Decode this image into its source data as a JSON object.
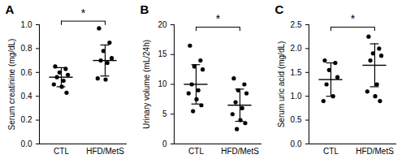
{
  "chart_data": [
    {
      "type": "scatter",
      "title": "A",
      "y_label": "Serum creatinine (mg/dL)",
      "categories": [
        "CTL",
        "HFD/MetS"
      ],
      "points": [
        [
          0.65,
          0.63,
          0.6,
          0.58,
          0.56,
          0.53,
          0.5,
          0.48,
          0.43
        ],
        [
          0.97,
          0.85,
          0.78,
          0.72,
          0.7,
          0.68,
          0.55,
          0.54
        ]
      ],
      "mean": [
        0.56,
        0.7
      ],
      "sd": [
        0.08,
        0.13
      ],
      "color": "#000000",
      "ylim": [
        0,
        1
      ],
      "yticks": [
        {
          "value": 0,
          "label": "0.0"
        },
        0.2,
        0.4,
        0.6,
        0.8,
        {
          "value": 1,
          "label": "1.0"
        }
      ],
      "annotations": [
        {
          "text": "*",
          "between": [
            "CTL",
            "HFD/MetS"
          ]
        }
      ]
    },
    {
      "type": "scatter",
      "title": "B",
      "y_label": "Urinary volume (mL/24h)",
      "categories": [
        "CTL",
        "HFD/MetS"
      ],
      "points": [
        [
          16.5,
          14,
          13,
          12.5,
          10,
          9,
          8.5,
          7.5,
          6.5,
          5.5
        ],
        [
          11,
          10,
          9,
          8.5,
          7,
          6,
          5,
          4,
          3.5,
          2.5
        ]
      ],
      "mean": [
        10,
        6.5
      ],
      "sd": [
        3.3,
        2.7
      ],
      "color": "#000000",
      "ylim": [
        0,
        20
      ],
      "yticks": [
        0,
        5,
        10,
        15,
        20
      ],
      "annotations": [
        {
          "text": "*",
          "between": [
            "CTL",
            "HFD/MetS"
          ]
        }
      ]
    },
    {
      "type": "scatter",
      "title": "C",
      "y_label": "Serum uric acid (mg/dL)",
      "categories": [
        "CTL",
        "HFD/MetS"
      ],
      "points": [
        [
          1.75,
          1.7,
          1.55,
          1.4,
          1.25,
          1.0,
          0.9
        ],
        [
          2.25,
          2.0,
          1.9,
          1.85,
          1.75,
          1.25,
          1.1,
          1.0,
          0.9
        ]
      ],
      "mean": [
        1.35,
        1.65
      ],
      "sd": [
        0.35,
        0.45
      ],
      "color": "#000000",
      "ylim": [
        0,
        2.5
      ],
      "yticks": [
        {
          "value": 0,
          "label": "0.0"
        },
        0.5,
        {
          "value": 1,
          "label": "1.0"
        },
        1.5,
        {
          "value": 2,
          "label": "2.0"
        },
        2.5
      ],
      "annotations": [
        {
          "text": "*",
          "between": [
            "CTL",
            "HFD/MetS"
          ]
        }
      ]
    }
  ]
}
